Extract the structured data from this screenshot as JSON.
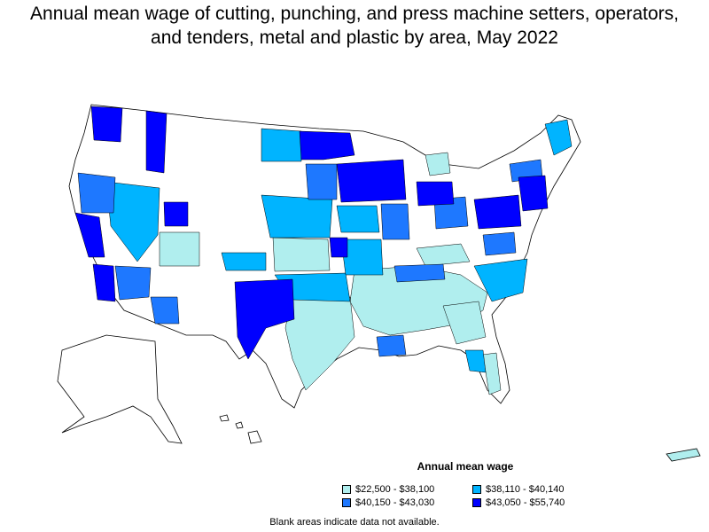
{
  "title": {
    "line1": "Annual mean wage of cutting, punching, and press machine setters, operators,",
    "line2": "and tenders, metal and plastic by area, May 2022"
  },
  "legend": {
    "title": "Annual mean wage",
    "items": [
      {
        "label": "$22,500 - $38,100",
        "color": "#b0eeee"
      },
      {
        "label": "$38,110 - $40,140",
        "color": "#00b4ff"
      },
      {
        "label": "$40,150 - $43,030",
        "color": "#1e78ff"
      },
      {
        "label": "$43,050 - $55,740",
        "color": "#0000ff"
      }
    ]
  },
  "footnote": "Blank areas indicate data not available.",
  "colors": {
    "tier1": "#b0eeee",
    "tier2": "#00b4ff",
    "tier3": "#1e78ff",
    "tier4": "#0000ff",
    "no_data": "#ffffff",
    "border": "#000000"
  }
}
